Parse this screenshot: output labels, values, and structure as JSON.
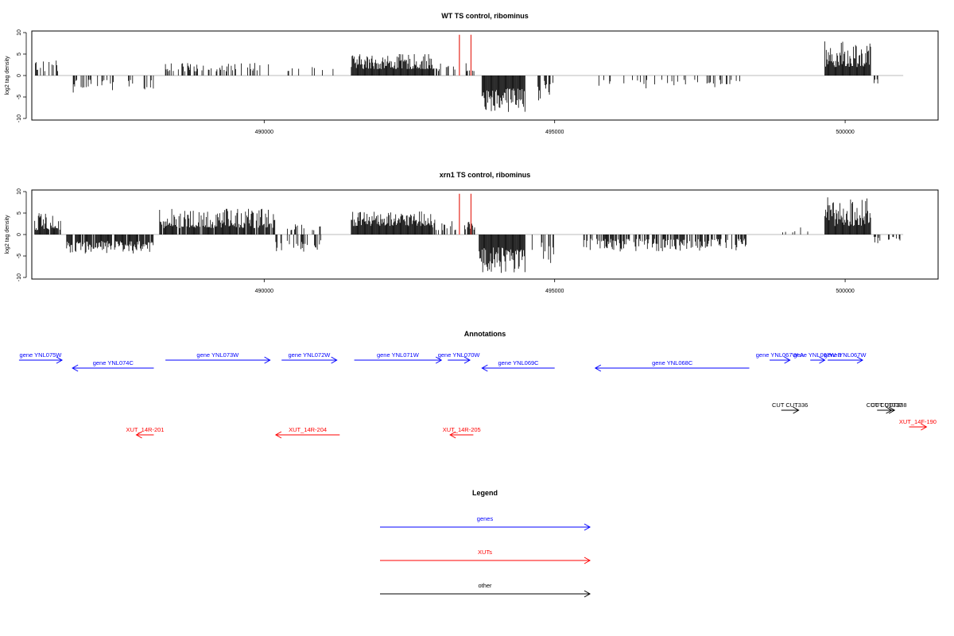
{
  "chart_data": [
    {
      "type": "bar",
      "title": "WT TS control, ribominus",
      "ylabel": "log2 tag density",
      "xlim": [
        486000,
        501600
      ],
      "ylim": [
        -10,
        10
      ],
      "x_ticks": [
        490000,
        495000,
        500000
      ],
      "y_ticks": [
        10,
        5,
        0,
        -5,
        -10
      ],
      "grid": false,
      "baseline_color": "#bbbbbb",
      "bar_color": "#000000",
      "highlight_color": "#e8382f",
      "highlights": [
        {
          "x": 493360,
          "value": 9.5
        },
        {
          "x": 493560,
          "value": 9.5
        }
      ],
      "segments": [
        {
          "from": 486050,
          "to": 486500,
          "density": 0.35,
          "min": 1,
          "max": 4
        },
        {
          "from": 486700,
          "to": 488100,
          "density": 0.3,
          "min": -4,
          "max": -1
        },
        {
          "from": 488300,
          "to": 490100,
          "density": 0.3,
          "min": 1,
          "max": 3
        },
        {
          "from": 490200,
          "to": 491300,
          "density": 0.1,
          "min": 1,
          "max": 2
        },
        {
          "from": 491500,
          "to": 492900,
          "density": 1,
          "min": 1.5,
          "max": 5
        },
        {
          "from": 492900,
          "to": 493300,
          "density": 0.4,
          "min": 1,
          "max": 3
        },
        {
          "from": 493450,
          "to": 493650,
          "density": 0.4,
          "min": 1,
          "max": 3
        },
        {
          "from": 493750,
          "to": 494500,
          "density": 1,
          "min": -8.5,
          "max": -3
        },
        {
          "from": 494700,
          "to": 495000,
          "density": 0.3,
          "min": -6,
          "max": -1
        },
        {
          "from": 495700,
          "to": 498300,
          "density": 0.15,
          "min": -3,
          "max": -1
        },
        {
          "from": 499650,
          "to": 500450,
          "density": 1,
          "min": 2,
          "max": 8
        },
        {
          "from": 500500,
          "to": 500600,
          "density": 0.5,
          "min": -2,
          "max": -0.5
        }
      ]
    },
    {
      "type": "bar",
      "title": "xrn1 TS control, ribominus",
      "ylabel": "log2 tag density",
      "xlim": [
        486000,
        501600
      ],
      "ylim": [
        -10,
        10
      ],
      "x_ticks": [
        490000,
        495000,
        500000
      ],
      "y_ticks": [
        10,
        5,
        0,
        -5,
        -10
      ],
      "grid": false,
      "baseline_color": "#bbbbbb",
      "bar_color": "#000000",
      "highlight_color": "#e8382f",
      "highlights": [
        {
          "x": 493360,
          "value": 9.5
        },
        {
          "x": 493560,
          "value": 9.5
        }
      ],
      "segments": [
        {
          "from": 486050,
          "to": 486500,
          "density": 0.9,
          "min": 1,
          "max": 5
        },
        {
          "from": 486600,
          "to": 488100,
          "density": 0.9,
          "min": -4.5,
          "max": -1.5
        },
        {
          "from": 488200,
          "to": 490200,
          "density": 0.9,
          "min": 1.5,
          "max": 6
        },
        {
          "from": 490200,
          "to": 491000,
          "density": 0.4,
          "min": -4,
          "max": -1
        },
        {
          "from": 490400,
          "to": 491000,
          "density": 0.35,
          "min": 1,
          "max": 3
        },
        {
          "from": 491500,
          "to": 492900,
          "density": 1,
          "min": 2,
          "max": 5.5
        },
        {
          "from": 492900,
          "to": 493300,
          "density": 0.5,
          "min": 1,
          "max": 3.5
        },
        {
          "from": 493450,
          "to": 493650,
          "density": 0.5,
          "min": 1,
          "max": 3
        },
        {
          "from": 493700,
          "to": 494500,
          "density": 1,
          "min": -9,
          "max": -3
        },
        {
          "from": 494550,
          "to": 495000,
          "density": 0.35,
          "min": -7,
          "max": -1
        },
        {
          "from": 495500,
          "to": 498300,
          "density": 0.6,
          "min": -4,
          "max": -1
        },
        {
          "from": 498900,
          "to": 499400,
          "density": 0.1,
          "min": 0.5,
          "max": 2
        },
        {
          "from": 499650,
          "to": 500450,
          "density": 1,
          "min": 2,
          "max": 9
        },
        {
          "from": 500500,
          "to": 501000,
          "density": 0.35,
          "min": -2.5,
          "max": -0.5
        }
      ]
    }
  ],
  "annotations": {
    "title": "Annotations",
    "features": [
      {
        "label": "gene YNL075W",
        "color": "#0000ff",
        "start": 485780,
        "end": 486520,
        "strand": "+",
        "lane": 1
      },
      {
        "label": "gene YNL074C",
        "color": "#0000ff",
        "start": 486700,
        "end": 488100,
        "strand": "-",
        "lane": 2
      },
      {
        "label": "gene YNL073W",
        "color": "#0000ff",
        "start": 488300,
        "end": 490100,
        "strand": "+",
        "lane": 1
      },
      {
        "label": "gene YNL072W",
        "color": "#0000ff",
        "start": 490300,
        "end": 491250,
        "strand": "+",
        "lane": 1
      },
      {
        "label": "gene YNL071W",
        "color": "#0000ff",
        "start": 491550,
        "end": 493050,
        "strand": "+",
        "lane": 1
      },
      {
        "label": "gene YNL070W",
        "color": "#0000ff",
        "start": 493160,
        "end": 493540,
        "strand": "+",
        "lane": 1
      },
      {
        "label": "gene YNL069C",
        "color": "#0000ff",
        "start": 493750,
        "end": 495000,
        "strand": "-",
        "lane": 2
      },
      {
        "label": "gene YNL068C",
        "color": "#0000ff",
        "start": 495700,
        "end": 498350,
        "strand": "-",
        "lane": 2
      },
      {
        "label": "gene YNL067W-A",
        "color": "#0000ff",
        "start": 498700,
        "end": 499050,
        "strand": "+",
        "lane": 1
      },
      {
        "label": "gene YNL067W-B",
        "color": "#0000ff",
        "start": 499400,
        "end": 499650,
        "strand": "+",
        "lane": 1
      },
      {
        "label": "gene YNL067W",
        "color": "#0000ff",
        "start": 499700,
        "end": 500300,
        "strand": "+",
        "lane": 1
      },
      {
        "label": "CUT CUT336",
        "color": "#000000",
        "start": 498900,
        "end": 499200,
        "strand": "+",
        "lane": 3
      },
      {
        "label": "CUT CUT337",
        "color": "#000000",
        "start": 500550,
        "end": 500800,
        "strand": "+",
        "lane": 3
      },
      {
        "label": "CUT CUT338",
        "color": "#000000",
        "start": 500650,
        "end": 500850,
        "strand": "+",
        "lane": 3
      },
      {
        "label": "XUT_14F-190",
        "color": "#ff0000",
        "start": 501100,
        "end": 501400,
        "strand": "+",
        "lane": 4
      },
      {
        "label": "XUT_14R-201",
        "color": "#ff0000",
        "start": 487800,
        "end": 488100,
        "strand": "-",
        "lane": 5
      },
      {
        "label": "XUT_14R-204",
        "color": "#ff0000",
        "start": 490200,
        "end": 491300,
        "strand": "-",
        "lane": 5
      },
      {
        "label": "XUT_14R-205",
        "color": "#ff0000",
        "start": 493200,
        "end": 493600,
        "strand": "-",
        "lane": 5
      }
    ]
  },
  "legend": {
    "title": "Legend",
    "items": [
      {
        "label": "genes",
        "color": "#0000ff"
      },
      {
        "label": "XUTs",
        "color": "#ff0000"
      },
      {
        "label": "other",
        "color": "#000000"
      }
    ]
  }
}
